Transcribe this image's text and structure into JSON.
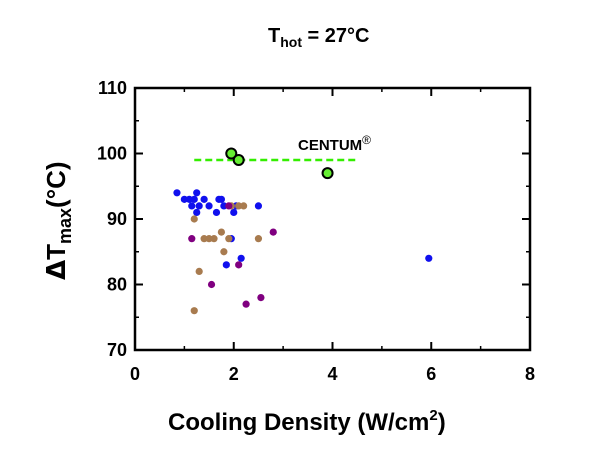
{
  "chart_data": {
    "type": "scatter",
    "title": {
      "main": "T",
      "sub": "hot",
      "rest": " = 27°C"
    },
    "xlabel": {
      "main": "Cooling Density (W/cm",
      "sup": "2",
      "rest": ")"
    },
    "ylabel": {
      "delta": "Δ",
      "main": "T",
      "sub": "max",
      "rest": "(°C)"
    },
    "xlim": [
      0,
      8
    ],
    "ylim": [
      70,
      110
    ],
    "xticks": [
      "0",
      "2",
      "4",
      "6",
      "8"
    ],
    "yticks": [
      "70",
      "80",
      "90",
      "100",
      "110"
    ],
    "grid": false,
    "annotation": {
      "text": "CENTUM",
      "sup": "®"
    },
    "reference_line": {
      "x": [
        1.2,
        4.5
      ],
      "y": 99,
      "color": "#33ee00",
      "style": "dashed"
    },
    "series": [
      {
        "color": "#1010ee",
        "points": [
          {
            "x": 0.85,
            "y": 94
          },
          {
            "x": 1.0,
            "y": 93
          },
          {
            "x": 1.1,
            "y": 93
          },
          {
            "x": 1.15,
            "y": 92
          },
          {
            "x": 1.2,
            "y": 93
          },
          {
            "x": 1.25,
            "y": 94
          },
          {
            "x": 1.25,
            "y": 91
          },
          {
            "x": 1.3,
            "y": 92
          },
          {
            "x": 1.4,
            "y": 93
          },
          {
            "x": 1.5,
            "y": 92
          },
          {
            "x": 1.65,
            "y": 91
          },
          {
            "x": 1.7,
            "y": 93
          },
          {
            "x": 1.75,
            "y": 93
          },
          {
            "x": 1.8,
            "y": 92
          },
          {
            "x": 1.85,
            "y": 83
          },
          {
            "x": 1.95,
            "y": 87
          },
          {
            "x": 2.0,
            "y": 91
          },
          {
            "x": 2.05,
            "y": 92
          },
          {
            "x": 2.15,
            "y": 84
          },
          {
            "x": 2.5,
            "y": 92
          },
          {
            "x": 5.95,
            "y": 84
          }
        ]
      },
      {
        "color": "#a87b4f",
        "points": [
          {
            "x": 1.2,
            "y": 90
          },
          {
            "x": 1.2,
            "y": 76
          },
          {
            "x": 1.3,
            "y": 82
          },
          {
            "x": 1.4,
            "y": 87
          },
          {
            "x": 1.5,
            "y": 87
          },
          {
            "x": 1.6,
            "y": 87
          },
          {
            "x": 1.75,
            "y": 88
          },
          {
            "x": 1.8,
            "y": 85
          },
          {
            "x": 1.9,
            "y": 87
          },
          {
            "x": 1.95,
            "y": 92
          },
          {
            "x": 2.1,
            "y": 92
          },
          {
            "x": 2.2,
            "y": 92
          },
          {
            "x": 2.5,
            "y": 87
          }
        ]
      },
      {
        "color": "#800080",
        "points": [
          {
            "x": 1.15,
            "y": 87
          },
          {
            "x": 1.55,
            "y": 80
          },
          {
            "x": 1.9,
            "y": 92
          },
          {
            "x": 2.1,
            "y": 83
          },
          {
            "x": 2.25,
            "y": 77
          },
          {
            "x": 2.55,
            "y": 78
          },
          {
            "x": 2.8,
            "y": 88
          }
        ]
      },
      {
        "color": "#66ee33",
        "outline": "#000000",
        "large": true,
        "points": [
          {
            "x": 1.95,
            "y": 100
          },
          {
            "x": 2.1,
            "y": 99
          },
          {
            "x": 3.9,
            "y": 97
          }
        ]
      }
    ]
  }
}
